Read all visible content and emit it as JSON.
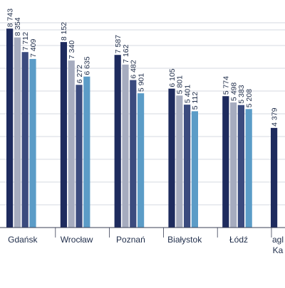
{
  "chart_data": {
    "type": "bar",
    "categories": [
      "Gdańsk",
      "Wrocław",
      "Poznań",
      "Białystok",
      "Łódź",
      "agl\nKa"
    ],
    "series": [
      {
        "values": [
          8743,
          8152,
          7587,
          6105,
          5774,
          4379
        ]
      },
      {
        "values": [
          8354,
          7340,
          7162,
          5801,
          5498,
          null
        ]
      },
      {
        "values": [
          7712,
          6272,
          6482,
          5401,
          5383,
          null
        ]
      },
      {
        "values": [
          7409,
          6635,
          5901,
          5112,
          5208,
          null
        ]
      }
    ],
    "data_labels": [
      [
        "8 743",
        "8 354",
        "7 712",
        "7 409"
      ],
      [
        "8 152",
        "7 340",
        "6 272",
        "6 635"
      ],
      [
        "7 587",
        "7 162",
        "6 482",
        "5 901"
      ],
      [
        "6 105",
        "5 801",
        "5 401",
        "5 112"
      ],
      [
        "5 774",
        "5 498",
        "5 383",
        "5 208"
      ],
      [
        "4 379"
      ]
    ],
    "colors": [
      "#1e2b5e",
      "#a6acbf",
      "#3b4b7e",
      "#5b9cc7"
    ],
    "ylim": [
      0,
      10000
    ],
    "grid": true,
    "legend": "none"
  }
}
